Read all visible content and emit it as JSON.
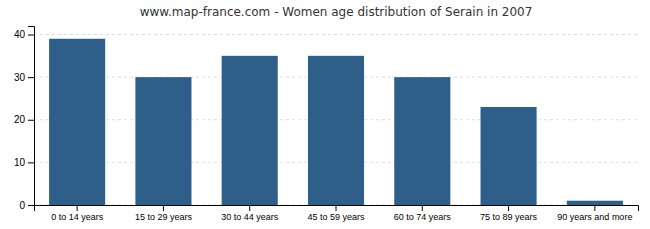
{
  "chart_data": {
    "type": "bar",
    "title": "www.map-france.com - Women age distribution of Serain in 2007",
    "categories": [
      "0 to 14 years",
      "15 to 29 years",
      "30 to 44 years",
      "45 to 59 years",
      "60 to 74 years",
      "75 to 89 years",
      "90 years and more"
    ],
    "values": [
      39,
      30,
      35,
      35,
      30,
      23,
      1
    ],
    "color": "#2e5f8a",
    "ylim": [
      0,
      42
    ],
    "yticks": [
      0,
      10,
      20,
      30,
      40
    ],
    "grid": true
  }
}
